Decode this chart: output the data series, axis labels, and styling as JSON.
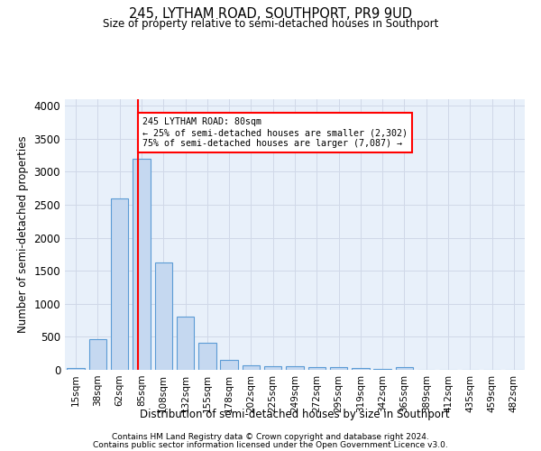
{
  "title1": "245, LYTHAM ROAD, SOUTHPORT, PR9 9UD",
  "title2": "Size of property relative to semi-detached houses in Southport",
  "xlabel": "Distribution of semi-detached houses by size in Southport",
  "ylabel": "Number of semi-detached properties",
  "footer1": "Contains HM Land Registry data © Crown copyright and database right 2024.",
  "footer2": "Contains public sector information licensed under the Open Government Licence v3.0.",
  "categories": [
    "15sqm",
    "38sqm",
    "62sqm",
    "85sqm",
    "108sqm",
    "132sqm",
    "155sqm",
    "178sqm",
    "202sqm",
    "225sqm",
    "249sqm",
    "272sqm",
    "295sqm",
    "319sqm",
    "342sqm",
    "365sqm",
    "389sqm",
    "412sqm",
    "435sqm",
    "459sqm",
    "482sqm"
  ],
  "values": [
    30,
    460,
    2600,
    3200,
    1620,
    800,
    410,
    155,
    70,
    60,
    50,
    40,
    35,
    30,
    20,
    45,
    5,
    3,
    2,
    2,
    2
  ],
  "bar_color": "#c5d8f0",
  "bar_edge_color": "#5b9bd5",
  "grid_color": "#d0d8e8",
  "bg_color": "#e8f0fa",
  "annotation_text": "245 LYTHAM ROAD: 80sqm\n← 25% of semi-detached houses are smaller (2,302)\n75% of semi-detached houses are larger (7,087) →",
  "annotation_box_color": "white",
  "annotation_box_edge": "red",
  "ylim": [
    0,
    4100
  ],
  "yticks": [
    0,
    500,
    1000,
    1500,
    2000,
    2500,
    3000,
    3500,
    4000
  ],
  "red_line_x": 2.82
}
